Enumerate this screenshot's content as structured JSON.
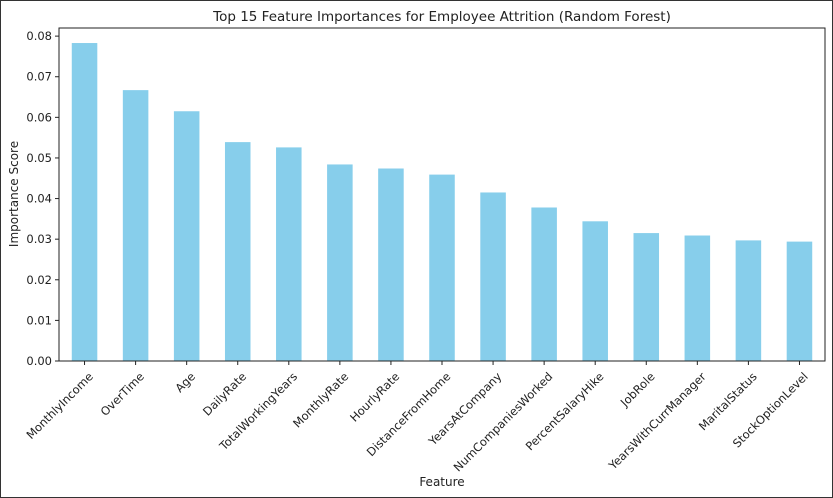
{
  "chart_data": {
    "type": "bar",
    "title": "Top 15 Feature Importances for Employee Attrition (Random Forest)",
    "xlabel": "Feature",
    "ylabel": "Importance Score",
    "ylim": [
      0,
      0.082
    ],
    "yticks": [
      "0.00",
      "0.01",
      "0.02",
      "0.03",
      "0.04",
      "0.05",
      "0.06",
      "0.07",
      "0.08"
    ],
    "grid": false,
    "bar_color": "#87CEEB",
    "categories": [
      "MonthlyIncome",
      "OverTime",
      "Age",
      "DailyRate",
      "TotalWorkingYears",
      "MonthlyRate",
      "HourlyRate",
      "DistanceFromHome",
      "YearsAtCompany",
      "NumCompaniesWorked",
      "PercentSalaryHike",
      "JobRole",
      "YearsWithCurrManager",
      "MaritalStatus",
      "StockOptionLevel"
    ],
    "values": [
      0.0783,
      0.0667,
      0.0615,
      0.0539,
      0.0526,
      0.0484,
      0.0474,
      0.0459,
      0.0415,
      0.0378,
      0.0344,
      0.0315,
      0.0309,
      0.0297,
      0.0294
    ]
  }
}
